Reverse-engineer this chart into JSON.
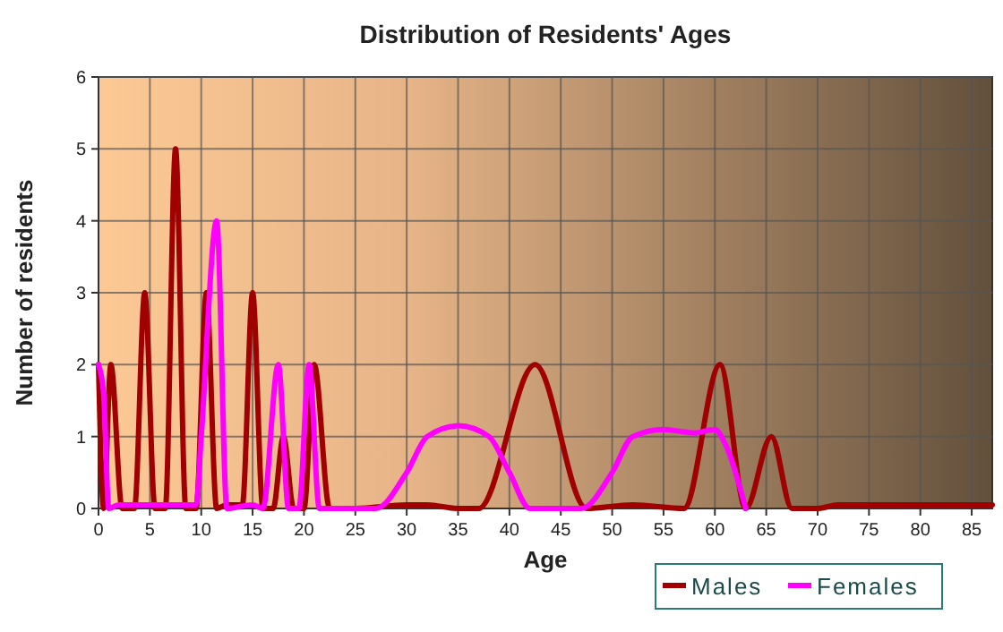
{
  "chart_data": {
    "type": "line",
    "title": "Distribution of Residents' Ages",
    "xlabel": "Age",
    "ylabel": "Number of residents",
    "xlim": [
      0,
      87
    ],
    "ylim": [
      0,
      6
    ],
    "xticks": [
      0,
      5,
      10,
      15,
      20,
      25,
      30,
      35,
      40,
      45,
      50,
      55,
      60,
      65,
      70,
      75,
      80,
      85
    ],
    "yticks": [
      0,
      1,
      2,
      3,
      4,
      5,
      6
    ],
    "grid": true,
    "legend": "bottom",
    "marker": "none",
    "line_style": "solid",
    "series": [
      {
        "name": "Males",
        "color": "#a00000",
        "x": [
          0,
          0.5,
          1.2,
          2.3,
          3.5,
          4.5,
          5.5,
          6.5,
          7.5,
          8.5,
          9.5,
          10.5,
          11.5,
          12.5,
          14,
          15,
          16,
          17,
          18,
          19,
          20,
          21,
          22.5,
          25,
          30,
          32,
          35,
          37,
          42.5,
          47.5,
          52,
          57,
          60.5,
          63,
          65.5,
          67.5,
          70,
          72,
          87
        ],
        "values": [
          2,
          0,
          2,
          0,
          0,
          3,
          0,
          0,
          5,
          0,
          0,
          3,
          0,
          0.05,
          0.05,
          3,
          0,
          0,
          1,
          0,
          0,
          2,
          0,
          0,
          0.05,
          0.05,
          0,
          0,
          2,
          0,
          0.05,
          0,
          2,
          0,
          1,
          0,
          0,
          0.05,
          0.05
        ]
      },
      {
        "name": "Females",
        "color": "#ff00ff",
        "x": [
          0,
          0.5,
          1,
          2,
          9.5,
          10,
          11.5,
          12.5,
          15,
          16,
          17.5,
          18.5,
          19.5,
          20.5,
          21.5,
          27,
          30,
          32,
          35,
          38,
          40,
          42,
          47,
          50,
          52,
          55,
          58,
          60,
          61,
          63
        ],
        "values": [
          2,
          1.6,
          0,
          0.05,
          0.05,
          1,
          4,
          0,
          0.05,
          0,
          2,
          0,
          0,
          2,
          0,
          0,
          0.5,
          1,
          1.15,
          1,
          0.5,
          0,
          0,
          0.5,
          1,
          1.1,
          1.05,
          1.1,
          0.9,
          0
        ]
      }
    ]
  }
}
